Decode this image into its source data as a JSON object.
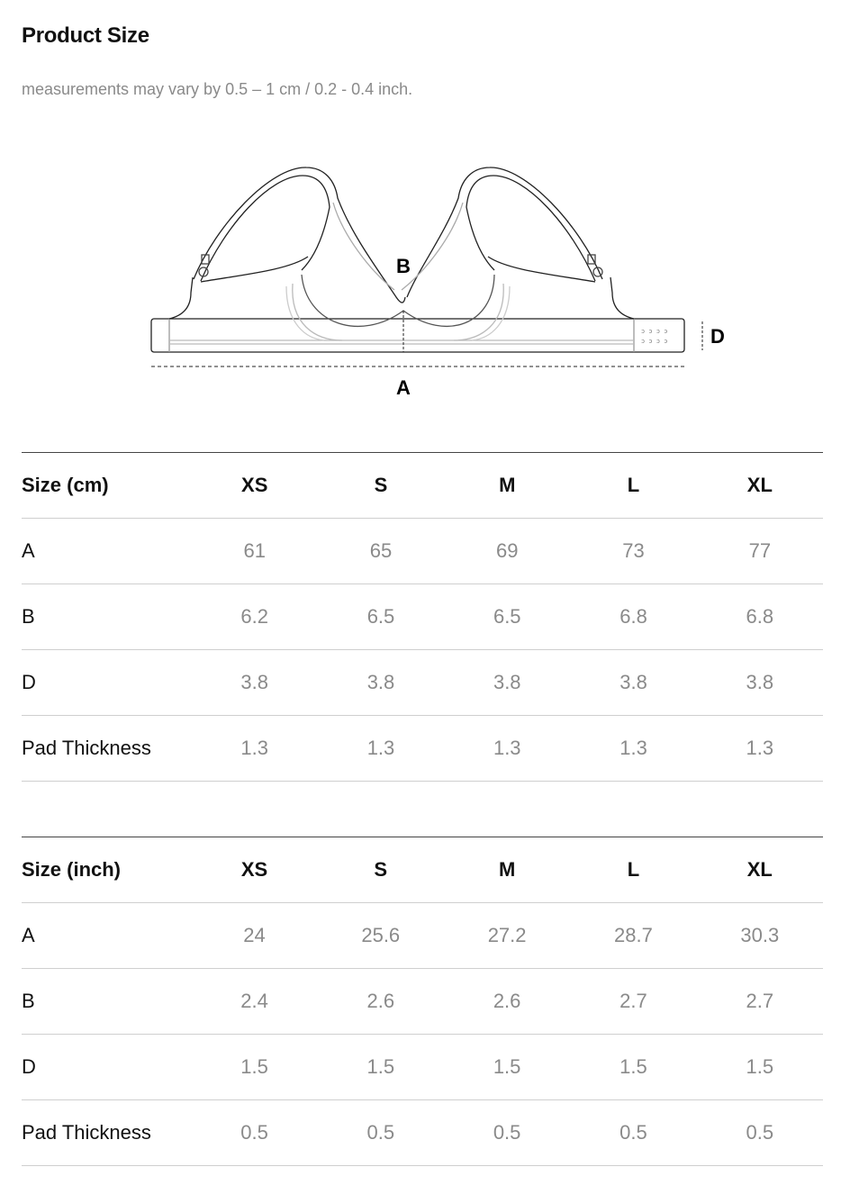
{
  "title": "Product Size",
  "note": "measurements may vary by 0.5 – 1 cm / 0.2 - 0.4 inch.",
  "diagram": {
    "label_a": "A",
    "label_b": "B",
    "label_d": "D"
  },
  "sizes": [
    "XS",
    "S",
    "M",
    "L",
    "XL"
  ],
  "table_cm": {
    "header": "Size (cm)",
    "rows": [
      {
        "label": "A",
        "values": [
          "61",
          "65",
          "69",
          "73",
          "77"
        ]
      },
      {
        "label": "B",
        "values": [
          "6.2",
          "6.5",
          "6.5",
          "6.8",
          "6.8"
        ]
      },
      {
        "label": "D",
        "values": [
          "3.8",
          "3.8",
          "3.8",
          "3.8",
          "3.8"
        ]
      },
      {
        "label": "Pad Thickness",
        "values": [
          "1.3",
          "1.3",
          "1.3",
          "1.3",
          "1.3"
        ]
      }
    ]
  },
  "table_inch": {
    "header": "Size (inch)",
    "rows": [
      {
        "label": "A",
        "values": [
          "24",
          "25.6",
          "27.2",
          "28.7",
          "30.3"
        ]
      },
      {
        "label": "B",
        "values": [
          "2.4",
          "2.6",
          "2.6",
          "2.7",
          "2.7"
        ]
      },
      {
        "label": "D",
        "values": [
          "1.5",
          "1.5",
          "1.5",
          "1.5",
          "1.5"
        ]
      },
      {
        "label": "Pad Thickness",
        "values": [
          "0.5",
          "0.5",
          "0.5",
          "0.5",
          "0.5"
        ]
      }
    ]
  }
}
